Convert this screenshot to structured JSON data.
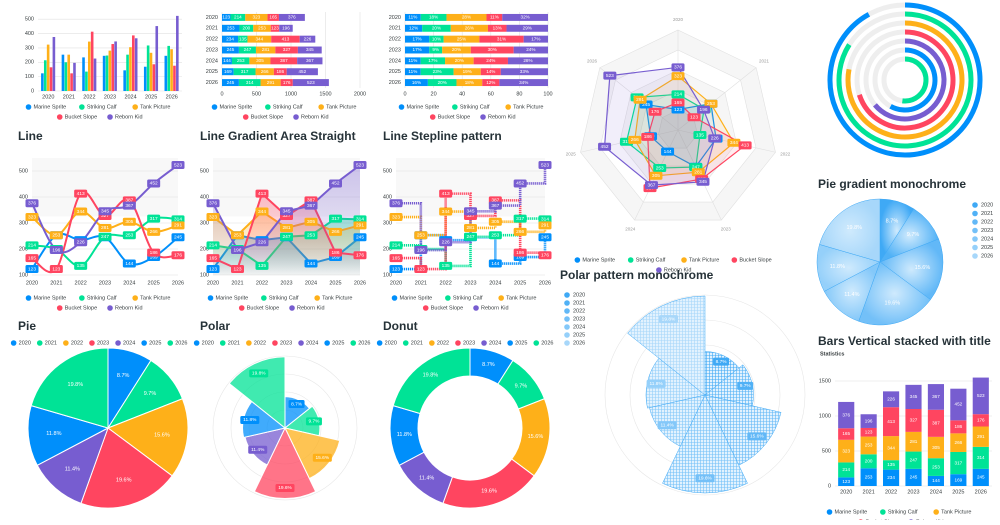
{
  "chart_data": [
    {
      "type": "bar",
      "categories": [
        "2020",
        "2021",
        "2022",
        "2023",
        "2024",
        "2025",
        "2026"
      ],
      "series": [
        {
          "name": "Marine Sprite",
          "color": "#008ffb",
          "values": [
            123,
            253,
            234,
            245,
            144,
            169,
            245
          ]
        },
        {
          "name": "Striking Calf",
          "color": "#00e396",
          "values": [
            214,
            200,
            135,
            247,
            253,
            317,
            314
          ]
        },
        {
          "name": "Tank Picture",
          "color": "#feb019",
          "values": [
            323,
            253,
            344,
            281,
            305,
            266,
            291
          ]
        },
        {
          "name": "Bucket Slope",
          "color": "#ff4560",
          "values": [
            165,
            123,
            413,
            327,
            387,
            186,
            176
          ]
        },
        {
          "name": "Reborn Kid",
          "color": "#775dd0",
          "values": [
            376,
            196,
            226,
            345,
            367,
            452,
            523
          ]
        }
      ],
      "ylim": [
        0,
        550
      ],
      "yticks": [
        0,
        100,
        200,
        300,
        400,
        500
      ],
      "grid": true
    },
    {
      "type": "bar-h-stacked",
      "categories": [
        "2020",
        "2021",
        "2022",
        "2023",
        "2024",
        "2025",
        "2026"
      ],
      "series": [
        {
          "name": "Marine Sprite",
          "color": "#008ffb",
          "values": [
            123,
            253,
            234,
            245,
            144,
            169,
            245
          ]
        },
        {
          "name": "Striking Calf",
          "color": "#00e396",
          "values": [
            214,
            200,
            135,
            247,
            253,
            317,
            314
          ]
        },
        {
          "name": "Tank Picture",
          "color": "#feb019",
          "values": [
            323,
            253,
            344,
            281,
            305,
            266,
            291
          ]
        },
        {
          "name": "Bucket Slope",
          "color": "#ff4560",
          "values": [
            165,
            123,
            413,
            327,
            387,
            186,
            176
          ]
        },
        {
          "name": "Reborn Kid",
          "color": "#775dd0",
          "values": [
            376,
            196,
            226,
            345,
            367,
            452,
            523
          ]
        }
      ],
      "xlim": [
        0,
        2000
      ],
      "xticks": [
        0,
        500,
        1000,
        1500,
        2000
      ],
      "grid": true
    },
    {
      "type": "bar-h-stacked",
      "categories": [
        "2020",
        "2021",
        "2022",
        "2023",
        "2024",
        "2025",
        "2026"
      ],
      "series": [
        {
          "name": "Marine Sprite",
          "color": "#008ffb",
          "values": [
            11,
            12,
            17,
            17,
            11,
            11,
            16
          ],
          "value_labels": [
            "11%",
            "12%",
            "17%",
            "17%",
            "11%",
            "11%",
            "16%"
          ]
        },
        {
          "name": "Striking Calf",
          "color": "#00e396",
          "values": [
            18,
            20,
            10,
            9,
            17,
            23,
            20
          ],
          "value_labels": [
            "18%",
            "20%",
            "10%",
            "9%",
            "17%",
            "23%",
            "20%"
          ]
        },
        {
          "name": "Tank Picture",
          "color": "#feb019",
          "values": [
            28,
            26,
            25,
            20,
            20,
            19,
            18
          ],
          "value_labels": [
            "28%",
            "26%",
            "25%",
            "20%",
            "20%",
            "19%",
            "18%"
          ]
        },
        {
          "name": "Bucket Slope",
          "color": "#ff4560",
          "values": [
            11,
            13,
            31,
            30,
            24,
            14,
            12
          ],
          "value_labels": [
            "11%",
            "13%",
            "31%",
            "30%",
            "24%",
            "14%",
            "12%"
          ]
        },
        {
          "name": "Reborn Kid",
          "color": "#775dd0",
          "values": [
            32,
            29,
            17,
            24,
            28,
            33,
            34
          ],
          "value_labels": [
            "32%",
            "29%",
            "17%",
            "24%",
            "28%",
            "33%",
            "34%"
          ]
        }
      ],
      "xlim": [
        0,
        100
      ],
      "xticks": [
        0,
        20,
        40,
        60,
        80,
        100
      ],
      "grid": true
    },
    {
      "type": "radar",
      "categories": [
        "2020",
        "2021",
        "2022",
        "2023",
        "2024",
        "2025",
        "2026"
      ],
      "series": [
        {
          "name": "Marine Sprite",
          "color": "#008ffb",
          "values": [
            123,
            253,
            234,
            245,
            144,
            169,
            245
          ]
        },
        {
          "name": "Striking Calf",
          "color": "#00e396",
          "values": [
            214,
            200,
            135,
            247,
            253,
            317,
            314
          ]
        },
        {
          "name": "Tank Picture",
          "color": "#feb019",
          "values": [
            323,
            253,
            344,
            281,
            305,
            266,
            291
          ]
        },
        {
          "name": "Bucket Slope",
          "color": "#ff4560",
          "values": [
            165,
            123,
            413,
            327,
            387,
            186,
            176
          ]
        },
        {
          "name": "Reborn Kid",
          "color": "#775dd0",
          "values": [
            376,
            196,
            226,
            345,
            367,
            452,
            523
          ]
        }
      ],
      "rlim": [
        0,
        600
      ]
    },
    {
      "type": "radial-bar",
      "values": [
        92,
        84,
        78,
        70,
        64,
        58,
        52
      ],
      "colors": [
        "#008ffb",
        "#00e396",
        "#feb019",
        "#ff4560",
        "#775dd0",
        "#008ffb",
        "#00e396"
      ],
      "rlim": [
        0,
        100
      ]
    },
    {
      "type": "line",
      "title": "Line",
      "curve": "smooth",
      "categories": [
        "2020",
        "2021",
        "2022",
        "2023",
        "2024",
        "2025",
        "2026"
      ],
      "series": [
        {
          "name": "Marine Sprite",
          "color": "#008ffb",
          "values": [
            123,
            253,
            234,
            245,
            144,
            169,
            245
          ]
        },
        {
          "name": "Striking Calf",
          "color": "#00e396",
          "values": [
            214,
            200,
            135,
            247,
            253,
            317,
            314
          ]
        },
        {
          "name": "Tank Picture",
          "color": "#feb019",
          "values": [
            323,
            253,
            344,
            281,
            305,
            266,
            291
          ]
        },
        {
          "name": "Bucket Slope",
          "color": "#ff4560",
          "values": [
            165,
            123,
            413,
            327,
            387,
            186,
            176
          ]
        },
        {
          "name": "Reborn Kid",
          "color": "#775dd0",
          "values": [
            376,
            196,
            226,
            345,
            367,
            452,
            523
          ]
        }
      ],
      "ylim": [
        100,
        550
      ],
      "yticks": [
        100,
        200,
        300,
        400,
        500
      ],
      "grid": true
    },
    {
      "type": "line",
      "title": "Line Gradient Area Straight",
      "curve": "straight",
      "area": "gradient",
      "categories": [
        "2020",
        "2021",
        "2022",
        "2023",
        "2024",
        "2025",
        "2026"
      ],
      "series": [
        {
          "name": "Marine Sprite",
          "color": "#008ffb",
          "values": [
            123,
            253,
            234,
            245,
            144,
            169,
            245
          ]
        },
        {
          "name": "Striking Calf",
          "color": "#00e396",
          "values": [
            214,
            200,
            135,
            247,
            253,
            317,
            314
          ]
        },
        {
          "name": "Tank Picture",
          "color": "#feb019",
          "values": [
            323,
            253,
            344,
            281,
            305,
            266,
            291
          ]
        },
        {
          "name": "Bucket Slope",
          "color": "#ff4560",
          "values": [
            165,
            123,
            413,
            327,
            387,
            186,
            176
          ]
        },
        {
          "name": "Reborn Kid",
          "color": "#775dd0",
          "values": [
            376,
            196,
            226,
            345,
            367,
            452,
            523
          ]
        }
      ],
      "ylim": [
        100,
        550
      ],
      "yticks": [
        100,
        200,
        300,
        400,
        500
      ],
      "grid": true
    },
    {
      "type": "line",
      "title": "Line Stepline pattern",
      "curve": "step",
      "pattern": true,
      "categories": [
        "2020",
        "2021",
        "2022",
        "2023",
        "2024",
        "2025",
        "2026"
      ],
      "series": [
        {
          "name": "Marine Sprite",
          "color": "#008ffb",
          "values": [
            123,
            253,
            234,
            245,
            144,
            169,
            245
          ]
        },
        {
          "name": "Striking Calf",
          "color": "#00e396",
          "values": [
            214,
            200,
            135,
            247,
            253,
            317,
            314
          ]
        },
        {
          "name": "Tank Picture",
          "color": "#feb019",
          "values": [
            323,
            253,
            344,
            281,
            305,
            266,
            291
          ]
        },
        {
          "name": "Bucket Slope",
          "color": "#ff4560",
          "values": [
            165,
            123,
            413,
            327,
            387,
            186,
            176
          ]
        },
        {
          "name": "Reborn Kid",
          "color": "#775dd0",
          "values": [
            376,
            196,
            226,
            345,
            367,
            452,
            523
          ]
        }
      ],
      "ylim": [
        100,
        550
      ],
      "yticks": [
        100,
        200,
        300,
        400,
        500
      ],
      "grid": true
    },
    {
      "type": "pie",
      "title": "Pie gradient monochrome",
      "fill": "gradient-monochrome",
      "color": "#3fa9f5",
      "legend": "right",
      "labels": [
        "2020",
        "2021",
        "2022",
        "2023",
        "2024",
        "2025",
        "2026"
      ],
      "values": [
        8.7,
        9.7,
        15.6,
        19.6,
        11.4,
        11.8,
        19.8
      ],
      "value_labels": [
        "8.7%",
        "9.7%",
        "15.6%",
        "19.6%",
        "11.4%",
        "11.8%",
        "19.8%"
      ]
    },
    {
      "type": "pie",
      "title": "Pie",
      "legend": "top",
      "colors": [
        "#008ffb",
        "#00e396",
        "#feb019",
        "#ff4560",
        "#775dd0",
        "#008ffb",
        "#00e396"
      ],
      "labels": [
        "2020",
        "2021",
        "2022",
        "2023",
        "2024",
        "2025",
        "2026"
      ],
      "values": [
        8.7,
        9.7,
        15.6,
        19.6,
        11.4,
        11.8,
        19.8
      ],
      "value_labels": [
        "8.7%",
        "9.7%",
        "15.6%",
        "19.6%",
        "11.4%",
        "11.8%",
        "19.8%"
      ]
    },
    {
      "type": "polar",
      "title": "Polar",
      "legend": "top",
      "rlim": [
        0,
        20
      ],
      "colors": [
        "#008ffb",
        "#00e396",
        "#feb019",
        "#ff4560",
        "#775dd0",
        "#008ffb",
        "#00e396"
      ],
      "labels": [
        "2020",
        "2021",
        "2022",
        "2023",
        "2024",
        "2025",
        "2026"
      ],
      "values": [
        8.7,
        9.7,
        15.6,
        19.6,
        11.4,
        11.8,
        19.8
      ],
      "value_labels": [
        "8.7%",
        "9.7%",
        "15.6%",
        "19.6%",
        "11.4%",
        "11.8%",
        "19.8%"
      ]
    },
    {
      "type": "donut",
      "title": "Donut",
      "legend": "top",
      "colors": [
        "#008ffb",
        "#00e396",
        "#feb019",
        "#ff4560",
        "#775dd0",
        "#008ffb",
        "#00e396"
      ],
      "labels": [
        "2020",
        "2021",
        "2022",
        "2023",
        "2024",
        "2025",
        "2026"
      ],
      "values": [
        8.7,
        9.7,
        15.6,
        19.6,
        11.4,
        11.8,
        19.8
      ],
      "value_labels": [
        "8.7%",
        "9.7%",
        "15.6%",
        "19.6%",
        "11.4%",
        "11.8%",
        "19.8%"
      ]
    },
    {
      "type": "polar",
      "title": "Polar pattern monochrome",
      "fill": "pattern-monochrome",
      "color": "#3fa9f5",
      "legend": "left",
      "rlim": [
        0,
        20
      ],
      "labels": [
        "2020",
        "2021",
        "2022",
        "2023",
        "2024",
        "2025",
        "2026"
      ],
      "values": [
        8.7,
        9.7,
        15.6,
        19.6,
        11.4,
        11.8,
        19.8
      ],
      "value_labels": [
        "8.7%",
        "9.7%",
        "15.6%",
        "19.6%",
        "11.4%",
        "11.8%",
        "19.8%"
      ]
    },
    {
      "type": "bar-stacked",
      "title": "Bars Vertical stacked with title",
      "subtitle": "Statistics",
      "categories": [
        "2020",
        "2021",
        "2022",
        "2023",
        "2024",
        "2025",
        "2026"
      ],
      "series": [
        {
          "name": "Marine Sprite",
          "color": "#008ffb",
          "values": [
            123,
            253,
            234,
            245,
            144,
            169,
            245
          ]
        },
        {
          "name": "Striking Calf",
          "color": "#00e396",
          "values": [
            214,
            200,
            135,
            247,
            253,
            317,
            314
          ]
        },
        {
          "name": "Tank Picture",
          "color": "#feb019",
          "values": [
            323,
            253,
            344,
            281,
            305,
            266,
            291
          ]
        },
        {
          "name": "Bucket Slope",
          "color": "#ff4560",
          "values": [
            165,
            123,
            413,
            327,
            387,
            186,
            176
          ]
        },
        {
          "name": "Reborn Kid",
          "color": "#775dd0",
          "values": [
            376,
            196,
            226,
            345,
            367,
            452,
            523
          ]
        }
      ],
      "ylim": [
        0,
        1600
      ],
      "yticks": [
        0,
        500,
        1000,
        1500
      ],
      "grid": true
    }
  ]
}
